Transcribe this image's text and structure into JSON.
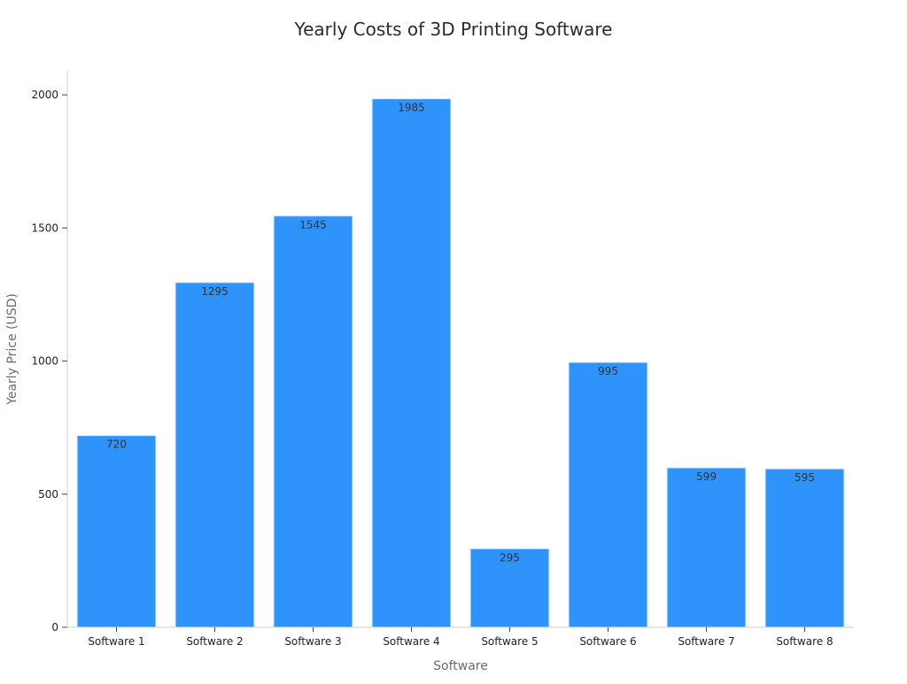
{
  "chart_data": {
    "type": "bar",
    "title": "Yearly Costs of 3D Printing Software",
    "xlabel": "Software",
    "ylabel": "Yearly Price (USD)",
    "categories": [
      "Software 1",
      "Software 2",
      "Software 3",
      "Software 4",
      "Software 5",
      "Software 6",
      "Software 7",
      "Software 8"
    ],
    "values": [
      720,
      1295,
      1545,
      1985,
      295,
      995,
      599,
      595
    ],
    "data_labels": [
      "720",
      "1295",
      "1545",
      "1985",
      "295",
      "995",
      "599",
      "595"
    ],
    "ylim": [
      0,
      2090
    ],
    "yticks": [
      0,
      500,
      1000,
      1500,
      2000
    ],
    "ytick_labels": [
      "0",
      "500",
      "1000",
      "1500",
      "2000"
    ],
    "grid": false,
    "legend": "none",
    "colors": {
      "bar": "#2e93fa",
      "bar_edge": "#cfe3f7"
    }
  }
}
